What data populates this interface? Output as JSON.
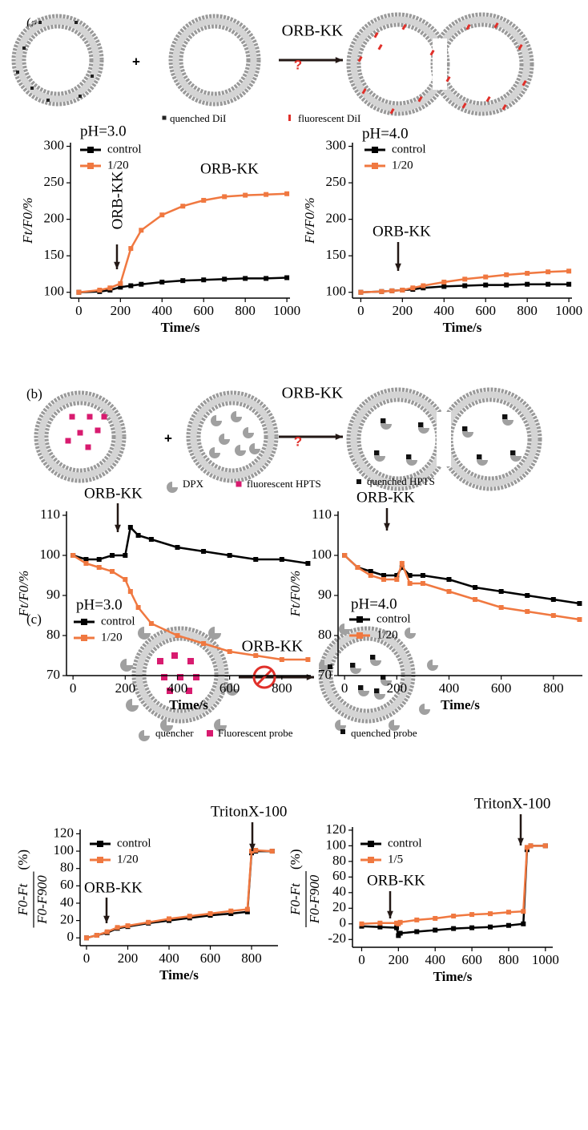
{
  "figure": {
    "panels": [
      "(a)",
      "(b)",
      "(c)"
    ],
    "operator": "+",
    "question": "?",
    "reagent": "ORB-KK",
    "legend_a": [
      "quenched DiI",
      "fluorescent DiI"
    ],
    "legend_b": [
      "DPX",
      "fluorescent HPTS",
      "quenched HPTS"
    ],
    "legend_c": [
      "quencher",
      "Fluorescent probe",
      "quenched probe"
    ]
  },
  "chart_data": [
    {
      "type": "line",
      "xlabel": "Time/s",
      "ylabel": "Ft/F0/%",
      "legend": "upper left",
      "annotations": [
        "pH=3.0",
        "ORB-KK",
        "ORB-KK"
      ],
      "x": [
        0,
        100,
        150,
        200,
        250,
        300,
        400,
        500,
        600,
        700,
        800,
        900,
        1000
      ],
      "series": [
        {
          "name": "control",
          "color": "#000000",
          "values": [
            100,
            101,
            103,
            107,
            109,
            111,
            114,
            116,
            117,
            118,
            119,
            119,
            120
          ]
        },
        {
          "name": "1/20",
          "color": "#f07840",
          "values": [
            100,
            103,
            106,
            112,
            160,
            185,
            206,
            218,
            226,
            231,
            233,
            234,
            235
          ]
        }
      ],
      "xlim": [
        -40,
        1015
      ],
      "ylim": [
        92,
        305
      ],
      "xticks": [
        0,
        200,
        400,
        600,
        800,
        1000
      ],
      "yticks": [
        100,
        150,
        200,
        250,
        300
      ]
    },
    {
      "type": "line",
      "xlabel": "Time/s",
      "ylabel": "Ft/F0/%",
      "legend": "upper left",
      "annotations": [
        "pH=4.0",
        "ORB-KK"
      ],
      "x": [
        0,
        100,
        150,
        200,
        250,
        300,
        400,
        500,
        600,
        700,
        800,
        900,
        1000
      ],
      "series": [
        {
          "name": "control",
          "color": "#000000",
          "values": [
            100,
            101,
            102,
            103,
            104,
            106,
            108,
            109,
            110,
            110,
            111,
            111,
            111
          ]
        },
        {
          "name": "1/20",
          "color": "#f07840",
          "values": [
            100,
            101,
            102,
            103,
            106,
            109,
            114,
            118,
            121,
            124,
            126,
            128,
            129
          ]
        }
      ],
      "xlim": [
        -40,
        1015
      ],
      "ylim": [
        92,
        305
      ],
      "xticks": [
        0,
        200,
        400,
        600,
        800,
        1000
      ],
      "yticks": [
        100,
        150,
        200,
        250,
        300
      ]
    },
    {
      "type": "line",
      "xlabel": "Time/s",
      "ylabel": "Ft/F0/%",
      "legend": "lower left",
      "annotations": [
        "ORB-KK",
        "pH=3.0"
      ],
      "x": [
        0,
        50,
        100,
        150,
        200,
        220,
        250,
        300,
        400,
        500,
        600,
        700,
        800,
        900
      ],
      "series": [
        {
          "name": "control",
          "color": "#000000",
          "values": [
            100,
            99,
            99,
            100,
            100,
            107,
            105,
            104,
            102,
            101,
            100,
            99,
            99,
            98
          ]
        },
        {
          "name": "1/20",
          "color": "#f07840",
          "values": [
            100,
            98,
            97,
            96,
            94,
            91,
            87,
            83,
            80,
            78,
            76,
            75,
            74,
            74
          ]
        }
      ],
      "xlim": [
        -25,
        911
      ],
      "ylim": [
        70,
        111
      ],
      "xticks": [
        0,
        200,
        400,
        600,
        800
      ],
      "yticks": [
        70,
        80,
        90,
        100,
        110
      ]
    },
    {
      "type": "line",
      "xlabel": "Time/s",
      "ylabel": "Ft/F0/%",
      "legend": "lower left",
      "annotations": [
        "ORB-KK",
        "pH=4.0"
      ],
      "x": [
        0,
        50,
        100,
        150,
        200,
        220,
        250,
        300,
        400,
        500,
        600,
        700,
        800,
        900
      ],
      "series": [
        {
          "name": "control",
          "color": "#000000",
          "values": [
            100,
            97,
            96,
            95,
            95,
            97,
            95,
            95,
            94,
            92,
            91,
            90,
            89,
            88
          ]
        },
        {
          "name": "1/20",
          "color": "#f07840",
          "values": [
            100,
            97,
            95,
            94,
            94,
            98,
            93,
            93,
            91,
            89,
            87,
            86,
            85,
            84
          ]
        }
      ],
      "xlim": [
        -25,
        911
      ],
      "ylim": [
        70,
        111
      ],
      "xticks": [
        0,
        200,
        400,
        600,
        800
      ],
      "yticks": [
        70,
        80,
        90,
        100,
        110
      ]
    },
    {
      "type": "line",
      "xlabel": "Time/s",
      "ylabel": {
        "numerator": "F0-Ft",
        "denominator": "F0-F900",
        "unit": "(%)"
      },
      "legend": "upper left",
      "annotations": [
        "TritonX-100",
        "ORB-KK"
      ],
      "x": [
        0,
        50,
        100,
        150,
        200,
        300,
        400,
        500,
        600,
        700,
        780,
        800,
        820,
        900
      ],
      "series": [
        {
          "name": "control",
          "color": "#000000",
          "values": [
            0,
            3,
            6,
            11,
            13,
            17,
            20,
            23,
            26,
            28,
            30,
            98,
            100,
            100
          ]
        },
        {
          "name": "1/20",
          "color": "#f07840",
          "values": [
            0,
            3,
            7,
            12,
            14,
            18,
            22,
            25,
            28,
            31,
            33,
            100,
            101,
            100
          ]
        }
      ],
      "xlim": [
        -31,
        928
      ],
      "ylim": [
        -9,
        125
      ],
      "xticks": [
        0,
        200,
        400,
        600,
        800
      ],
      "yticks": [
        0,
        20,
        40,
        60,
        80,
        100,
        120
      ]
    },
    {
      "type": "line",
      "xlabel": "Time/s",
      "ylabel": {
        "numerator": "F0-Ft",
        "denominator": "F0-F900",
        "unit": "(%)"
      },
      "legend": "upper left",
      "annotations": [
        "TritonX-100",
        "ORB-KK"
      ],
      "x": [
        0,
        100,
        190,
        200,
        210,
        300,
        400,
        500,
        600,
        700,
        800,
        880,
        900,
        920,
        1000
      ],
      "series": [
        {
          "name": "control",
          "color": "#000000",
          "values": [
            -3,
            -4,
            -5,
            -15,
            -12,
            -10,
            -8,
            -6,
            -5,
            -4,
            -2,
            0,
            95,
            100,
            100
          ]
        },
        {
          "name": "1/5",
          "color": "#f07840",
          "values": [
            0,
            1,
            1,
            0,
            2,
            5,
            7,
            10,
            12,
            13,
            15,
            16,
            98,
            100,
            100
          ]
        }
      ],
      "xlim": [
        -50,
        1040
      ],
      "ylim": [
        -30,
        124
      ],
      "xticks": [
        0,
        200,
        400,
        600,
        800,
        1000
      ],
      "yticks": [
        -20,
        0,
        20,
        40,
        60,
        80,
        100,
        120
      ]
    }
  ]
}
